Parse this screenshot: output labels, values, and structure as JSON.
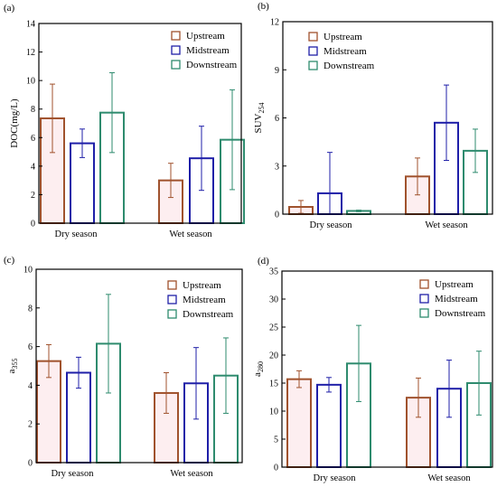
{
  "figure": {
    "series_names": [
      "Upstream",
      "Midstream",
      "Downstream"
    ],
    "colors": {
      "Upstream": "#a0522d",
      "Midstream": "#1f1fa8",
      "Downstream": "#2e8b6e",
      "Upstream_fill": "#fdeef0",
      "Midstream_fill": "#ffffff",
      "Downstream_fill": "#ffffff",
      "error_bar": "#000000"
    }
  },
  "chart_data": [
    {
      "panel": "(a)",
      "type": "bar",
      "categories": [
        "Dry season",
        "Wet season"
      ],
      "ylabel": "DOC(mg/L)",
      "ylabel_sub": "",
      "ylim": [
        0,
        14
      ],
      "yticks": [
        0,
        2,
        4,
        6,
        8,
        10,
        12,
        14
      ],
      "legend": "top-right",
      "series": [
        {
          "name": "Upstream",
          "values": [
            7.35,
            3.0
          ],
          "errors": [
            2.4,
            1.2
          ]
        },
        {
          "name": "Midstream",
          "values": [
            5.6,
            4.55
          ],
          "errors": [
            1.0,
            2.25
          ]
        },
        {
          "name": "Downstream",
          "values": [
            7.75,
            5.85
          ],
          "errors": [
            2.8,
            3.5
          ]
        }
      ]
    },
    {
      "panel": "(b)",
      "type": "bar",
      "categories": [
        "Dry season",
        "Wet season"
      ],
      "ylabel": "SUV",
      "ylabel_sub": "254",
      "ylim": [
        0,
        12
      ],
      "yticks": [
        0,
        3,
        6,
        9,
        12
      ],
      "legend": "top-right",
      "series": [
        {
          "name": "Upstream",
          "values": [
            0.45,
            2.35
          ],
          "errors": [
            0.4,
            1.15
          ]
        },
        {
          "name": "Midstream",
          "values": [
            1.3,
            5.7
          ],
          "errors": [
            2.55,
            2.35
          ]
        },
        {
          "name": "Downstream",
          "values": [
            0.2,
            3.95
          ],
          "errors": [
            0.05,
            1.35
          ]
        }
      ]
    },
    {
      "panel": "(c)",
      "type": "bar",
      "categories": [
        "Dry season",
        "Wet season"
      ],
      "ylabel": "a",
      "ylabel_sub": "355",
      "ylim": [
        0,
        10
      ],
      "yticks": [
        0,
        2,
        4,
        6,
        8,
        10
      ],
      "legend": "top-right",
      "series": [
        {
          "name": "Upstream",
          "values": [
            5.25,
            3.6
          ],
          "errors": [
            0.85,
            1.05
          ]
        },
        {
          "name": "Midstream",
          "values": [
            4.65,
            4.1
          ],
          "errors": [
            0.8,
            1.85
          ]
        },
        {
          "name": "Downstream",
          "values": [
            6.15,
            4.5
          ],
          "errors": [
            2.55,
            1.95
          ]
        }
      ]
    },
    {
      "panel": "(d)",
      "type": "bar",
      "categories": [
        "Dry season",
        "Wet season"
      ],
      "ylabel": "a",
      "ylabel_sub": "280",
      "ylim": [
        0,
        35
      ],
      "yticks": [
        0,
        5,
        10,
        15,
        20,
        25,
        30,
        35
      ],
      "legend": "top-right",
      "series": [
        {
          "name": "Upstream",
          "values": [
            15.7,
            12.4
          ],
          "errors": [
            1.5,
            3.5
          ]
        },
        {
          "name": "Midstream",
          "values": [
            14.7,
            14.0
          ],
          "errors": [
            1.3,
            5.1
          ]
        },
        {
          "name": "Downstream",
          "values": [
            18.5,
            15.0
          ],
          "errors": [
            6.8,
            5.7
          ]
        }
      ]
    }
  ]
}
